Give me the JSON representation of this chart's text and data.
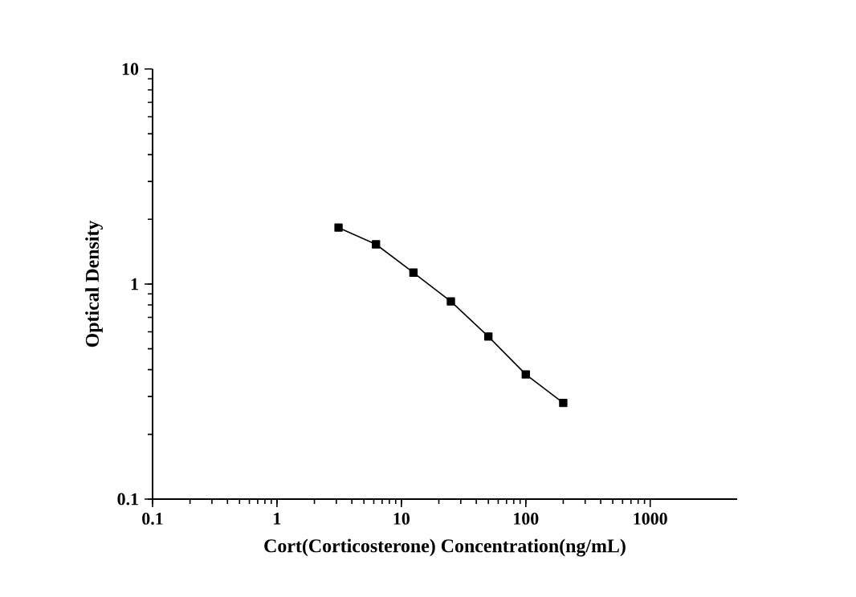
{
  "chart_data": {
    "type": "line",
    "xlabel": "Cort(Corticosterone)  Concentration(ng/mL)",
    "ylabel": "Optical Density",
    "x": [
      3.125,
      6.25,
      12.5,
      25,
      50,
      100,
      200
    ],
    "series": [
      {
        "color": "#000000",
        "values": [
          1.83,
          1.53,
          1.13,
          0.83,
          0.57,
          0.38,
          0.28
        ]
      }
    ],
    "log": "xy",
    "xlim": [
      0.1,
      5000
    ],
    "ylim": [
      0.1,
      10
    ],
    "xticks": [
      0.1,
      1,
      10,
      100,
      1000
    ],
    "yticks": [
      0.1,
      1,
      10
    ],
    "marker": "square",
    "line_style": "solid"
  }
}
